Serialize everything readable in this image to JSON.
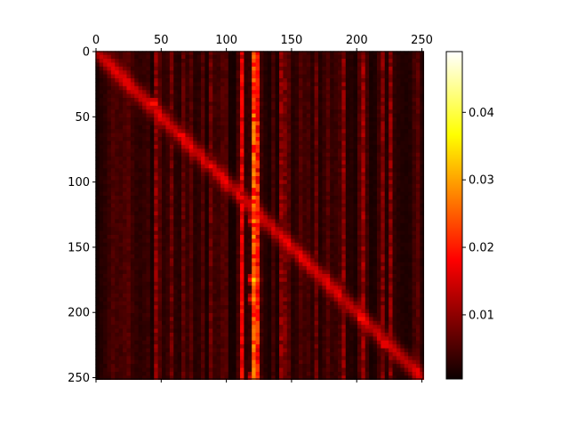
{
  "chart_data": {
    "type": "heatmap",
    "title": "",
    "xlabel": "",
    "ylabel": "",
    "xlim": [
      0,
      251
    ],
    "ylim": [
      251,
      0
    ],
    "x_ticks": [
      0,
      50,
      100,
      150,
      200,
      250
    ],
    "y_ticks": [
      0,
      50,
      100,
      150,
      200,
      250
    ],
    "x_tick_labels": [
      "0",
      "50",
      "100",
      "150",
      "200",
      "250"
    ],
    "y_tick_labels": [
      "0",
      "50",
      "100",
      "150",
      "200",
      "250"
    ],
    "x_axis_position": "top",
    "colormap": "hot",
    "colorbar": {
      "range": [
        0.0005,
        0.049
      ],
      "ticks": [
        0.01,
        0.02,
        0.03,
        0.04
      ],
      "tick_labels": [
        "0.01",
        "0.02",
        "0.03",
        "0.04"
      ],
      "placement": "right"
    },
    "structure": {
      "description_free": true,
      "rows": 252,
      "cols": 252,
      "diagonal_trend": {
        "start_col": 0,
        "end_col": 251
      },
      "bright_columns": [
        {
          "col": 45,
          "value": 0.012
        },
        {
          "col": 58,
          "value": 0.009
        },
        {
          "col": 66,
          "value": 0.008
        },
        {
          "col": 88,
          "value": 0.009
        },
        {
          "col": 112,
          "value": 0.02
        },
        {
          "col": 113,
          "value": 0.018
        },
        {
          "col": 122,
          "value": 0.03
        },
        {
          "col": 123,
          "value": 0.024
        },
        {
          "col": 142,
          "value": 0.012
        },
        {
          "col": 145,
          "value": 0.01
        },
        {
          "col": 170,
          "value": 0.009
        },
        {
          "col": 190,
          "value": 0.012
        },
        {
          "col": 204,
          "value": 0.013
        },
        {
          "col": 220,
          "value": 0.011
        },
        {
          "col": 226,
          "value": 0.012
        }
      ],
      "hotspots": [
        {
          "row": 40,
          "col": 45,
          "value": 0.022
        },
        {
          "row": 65,
          "col": 66,
          "value": 0.02
        },
        {
          "row": 88,
          "col": 88,
          "value": 0.019
        },
        {
          "row": 130,
          "col": 122,
          "value": 0.03
        },
        {
          "row": 175,
          "col": 122,
          "value": 0.035
        },
        {
          "row": 190,
          "col": 122,
          "value": 0.03
        },
        {
          "row": 250,
          "col": 122,
          "value": 0.028
        },
        {
          "row": 205,
          "col": 204,
          "value": 0.022
        },
        {
          "row": 225,
          "col": 222,
          "value": 0.02
        }
      ],
      "background_value": 0.004
    }
  }
}
